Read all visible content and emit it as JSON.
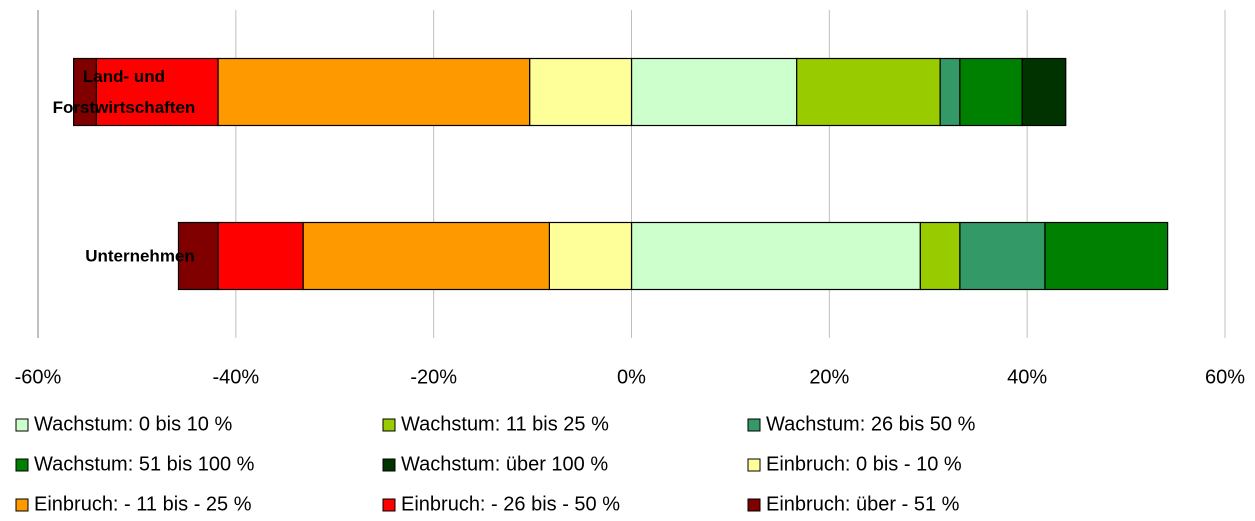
{
  "chart_data": {
    "type": "bar",
    "orientation": "horizontal",
    "stacked": true,
    "categories": [
      "Land- und Forstwirtschaften",
      "Unternehmen"
    ],
    "series": [
      {
        "name": "Wachstum: 0 bis 10 %",
        "color": "#ccffcc",
        "values": [
          16.7,
          29.2
        ]
      },
      {
        "name": "Wachstum: 11 bis 25 %",
        "color": "#99cc00",
        "values": [
          14.5,
          4.0
        ]
      },
      {
        "name": "Wachstum: 26 bis 50 %",
        "color": "#339966",
        "values": [
          2.0,
          8.6
        ]
      },
      {
        "name": "Wachstum: 51 bis 100 %",
        "color": "#008000",
        "values": [
          6.3,
          12.4
        ]
      },
      {
        "name": "Wachstum: über 100 %",
        "color": "#003300",
        "values": [
          4.4,
          0
        ]
      },
      {
        "name": "Einbruch: 0 bis - 10 %",
        "color": "#ffff99",
        "values": [
          -10.3,
          -8.3
        ]
      },
      {
        "name": "Einbruch: - 11 bis - 25 %",
        "color": "#ff9900",
        "values": [
          -31.5,
          -24.9
        ]
      },
      {
        "name": "Einbruch: - 26 bis - 50 %",
        "color": "#ff0000",
        "values": [
          -12.3,
          -8.6
        ]
      },
      {
        "name": "Einbruch: über - 51 %",
        "color": "#800000",
        "values": [
          -2.3,
          -4.0
        ]
      }
    ],
    "xlim": [
      -60,
      60
    ],
    "xticks": [
      {
        "value": -60,
        "label": "-60%"
      },
      {
        "value": -40,
        "label": "-40%"
      },
      {
        "value": -20,
        "label": "-20%"
      },
      {
        "value": 0,
        "label": "0%"
      },
      {
        "value": 20,
        "label": "20%"
      },
      {
        "value": 40,
        "label": "40%"
      },
      {
        "value": 60,
        "label": "60%"
      }
    ],
    "grid": true
  }
}
